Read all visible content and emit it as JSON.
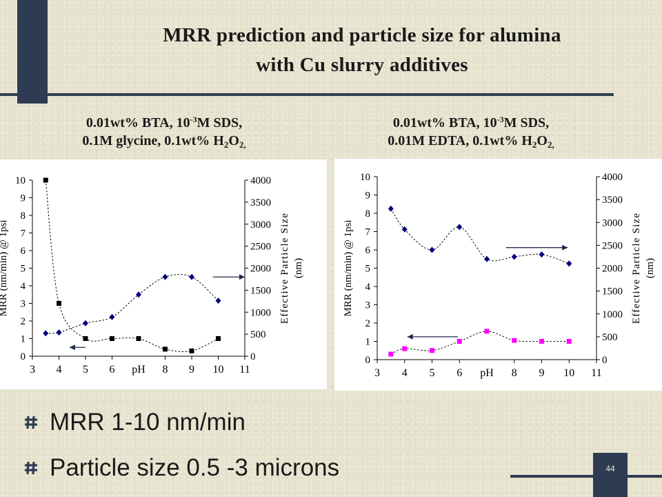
{
  "title_line1": "MRR prediction and particle size for alumina",
  "title_line2": "with Cu slurry additives",
  "subtitles": [
    {
      "line1_pre": "0.01wt% BTA, 10",
      "line1_sup": "-3",
      "line1_post": "M SDS,",
      "line2_pre": "0.1M glycine, 0.1wt% H",
      "line2_sub1": "2",
      "line2_mid": "O",
      "line2_sub2": "2,"
    },
    {
      "line1_pre": "0.01wt% BTA, 10",
      "line1_sup": "-3",
      "line1_post": "M SDS,",
      "line2_pre": "0.01M EDTA, 0.1wt% H",
      "line2_sub1": "2",
      "line2_mid": "O",
      "line2_sub2": "2,"
    }
  ],
  "bullets": [
    "MRR 1-10 nm/min",
    "Particle size 0.5 -3 microns"
  ],
  "slide_number": "44",
  "colors": {
    "accent_bar": "#2e3b52",
    "background": "#e6e3cf",
    "magenta_marker": "#ff00ff",
    "navy_marker": "#000080"
  },
  "chart_data": [
    {
      "type": "scatter",
      "xlabel": "pH",
      "ylabel": "MRR (nm/min) @ 1psi",
      "y2label": "Effective Particle Size (nm)",
      "xlim": [
        3,
        11
      ],
      "xticks": [
        3,
        4,
        5,
        6,
        8,
        9,
        10,
        11
      ],
      "ylim": [
        0,
        10
      ],
      "yticks": [
        0,
        1,
        2,
        3,
        4,
        5,
        6,
        7,
        8,
        9,
        10
      ],
      "y2lim": [
        0,
        4000
      ],
      "y2ticks": [
        0,
        500,
        1000,
        1500,
        2000,
        2500,
        3000,
        3500,
        4000
      ],
      "series": [
        {
          "axis": "left",
          "marker": "square",
          "color": "#000000",
          "points": [
            [
              3.5,
              10
            ],
            [
              4,
              3
            ],
            [
              5,
              1
            ],
            [
              6,
              1
            ],
            [
              7,
              1
            ],
            [
              8,
              0.4
            ],
            [
              9,
              0.3
            ],
            [
              10,
              1
            ]
          ]
        },
        {
          "axis": "right",
          "marker": "diamond",
          "color": "#000080",
          "points": [
            [
              3.5,
              520
            ],
            [
              4,
              540
            ],
            [
              5,
              750
            ],
            [
              6,
              890
            ],
            [
              7,
              1400
            ],
            [
              8,
              1800
            ],
            [
              9,
              1800
            ],
            [
              10,
              1260
            ]
          ]
        }
      ],
      "arrows": [
        {
          "points_to": "left",
          "y": 0.5,
          "x_from": 5,
          "x_to": 4.4
        },
        {
          "points_to": "right",
          "y2": 1800,
          "x_from": 9.8,
          "x_to": 11
        }
      ]
    },
    {
      "type": "scatter",
      "xlabel": "pH",
      "ylabel": "MRR (nm/min) @ 1psi",
      "y2label": "Effective Particle Size (nm)",
      "xlim": [
        3,
        11
      ],
      "xticks": [
        3,
        4,
        5,
        6,
        8,
        9,
        10,
        11
      ],
      "ylim": [
        0,
        10
      ],
      "yticks": [
        0,
        1,
        2,
        3,
        4,
        5,
        6,
        7,
        8,
        9,
        10
      ],
      "y2lim": [
        0,
        4000
      ],
      "y2ticks": [
        0,
        500,
        1000,
        1500,
        2000,
        2500,
        3000,
        3500,
        4000
      ],
      "series": [
        {
          "axis": "left",
          "marker": "square",
          "color": "#ff00ff",
          "points": [
            [
              3.5,
              0.3
            ],
            [
              4,
              0.6
            ],
            [
              5,
              0.5
            ],
            [
              6,
              1
            ],
            [
              7,
              1.55
            ],
            [
              8,
              1.05
            ],
            [
              9,
              1.0
            ],
            [
              10,
              1.0
            ]
          ]
        },
        {
          "axis": "right",
          "marker": "diamond",
          "color": "#000080",
          "points": [
            [
              3.5,
              3300
            ],
            [
              4,
              2850
            ],
            [
              5,
              2400
            ],
            [
              6,
              2900
            ],
            [
              7,
              2200
            ],
            [
              8,
              2250
            ],
            [
              9,
              2300
            ],
            [
              10,
              2100
            ]
          ]
        }
      ],
      "arrows": [
        {
          "points_to": "left",
          "y": 1.25,
          "x_from": 5.95,
          "x_to": 4.1
        },
        {
          "points_to": "right",
          "y2": 2450,
          "x_from": 7.7,
          "x_to": 9.95
        }
      ]
    }
  ]
}
